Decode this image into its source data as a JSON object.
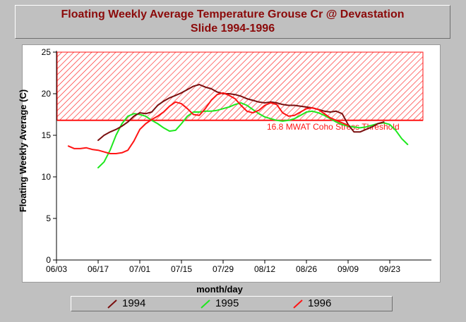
{
  "title": {
    "line1": "Floating Weekly Average Temperature Grouse Cr @ Devastation",
    "line2": "Slide 1994-1996"
  },
  "colors": {
    "s1994": "#7a0f0f",
    "s1995": "#1ee81e",
    "s1996": "#ff1414",
    "threshold": "#ff1414",
    "title_text": "#8b0a0a"
  },
  "chart_data": {
    "type": "line",
    "xlabel": "month/day",
    "ylabel": "Floating Weekly Average (C)",
    "ylim": [
      0,
      25
    ],
    "y_ticks": [
      0,
      5,
      10,
      15,
      20,
      25
    ],
    "x_ticks": [
      "06/03",
      "06/17",
      "07/01",
      "07/15",
      "07/29",
      "08/12",
      "08/26",
      "09/09",
      "09/23"
    ],
    "x_tick_days": [
      0,
      14,
      28,
      42,
      56,
      70,
      84,
      98,
      112
    ],
    "x_range_days": [
      0,
      126
    ],
    "grid": false,
    "legend_placement": "bottom",
    "threshold": {
      "value": 16.8,
      "label": "16.8 MWAT Coho Stress Threshold",
      "shaded_range": [
        16.8,
        25
      ]
    },
    "series": [
      {
        "name": "1994",
        "x": [
          14,
          16,
          18,
          20,
          22,
          24,
          26,
          28,
          30,
          32,
          34,
          36,
          38,
          40,
          42,
          44,
          46,
          48,
          50,
          52,
          54,
          56,
          58,
          60,
          62,
          64,
          66,
          68,
          70,
          72,
          74,
          76,
          78,
          80,
          82,
          84,
          86,
          88,
          90,
          92,
          94,
          96,
          98,
          100,
          102,
          104,
          106,
          108,
          110
        ],
        "y": [
          14.4,
          15.0,
          15.4,
          15.7,
          16.1,
          16.6,
          17.3,
          17.7,
          17.6,
          17.8,
          18.6,
          19.1,
          19.5,
          19.8,
          20.1,
          20.5,
          20.9,
          21.1,
          20.8,
          20.6,
          20.2,
          20.0,
          20.0,
          19.9,
          19.7,
          19.4,
          19.2,
          19.0,
          18.9,
          19.0,
          18.9,
          18.7,
          18.6,
          18.6,
          18.5,
          18.4,
          18.3,
          18.1,
          17.9,
          17.8,
          17.9,
          17.6,
          16.3,
          15.4,
          15.4,
          15.7,
          16.0,
          16.4,
          16.6
        ]
      },
      {
        "name": "1995",
        "x": [
          14,
          16,
          18,
          20,
          22,
          24,
          26,
          28,
          30,
          32,
          34,
          36,
          38,
          40,
          42,
          44,
          46,
          48,
          50,
          52,
          54,
          56,
          58,
          60,
          62,
          64,
          66,
          68,
          70,
          72,
          74,
          76,
          78,
          80,
          82,
          84,
          86,
          88,
          90,
          92,
          94,
          96,
          98,
          100,
          102,
          104,
          106,
          108,
          110,
          112,
          114,
          116,
          118
        ],
        "y": [
          11.1,
          11.8,
          13.2,
          15.0,
          16.4,
          17.3,
          17.6,
          17.5,
          17.3,
          16.8,
          16.4,
          15.9,
          15.5,
          15.6,
          16.4,
          17.3,
          17.8,
          17.8,
          17.9,
          17.9,
          18.0,
          18.2,
          18.4,
          18.7,
          18.9,
          18.6,
          18.1,
          17.6,
          17.2,
          17.0,
          16.8,
          16.7,
          16.8,
          17.0,
          17.4,
          17.8,
          17.9,
          17.7,
          17.4,
          17.0,
          16.6,
          16.3,
          16.1,
          16.0,
          15.9,
          16.0,
          16.2,
          16.4,
          16.5,
          16.3,
          15.6,
          14.6,
          13.9
        ]
      },
      {
        "name": "1996",
        "x": [
          4,
          6,
          8,
          10,
          12,
          14,
          16,
          18,
          20,
          22,
          24,
          26,
          28,
          30,
          32,
          34,
          36,
          38,
          40,
          42,
          44,
          46,
          48,
          50,
          52,
          54,
          56,
          58,
          60,
          62,
          64,
          66,
          68,
          70,
          72,
          74,
          76,
          78,
          80,
          82,
          84,
          86,
          88,
          90,
          92,
          94,
          96,
          98
        ],
        "y": [
          13.7,
          13.4,
          13.4,
          13.5,
          13.3,
          13.2,
          13.0,
          12.8,
          12.8,
          12.9,
          13.2,
          14.3,
          15.7,
          16.4,
          16.9,
          17.3,
          17.8,
          18.5,
          19.0,
          18.8,
          18.2,
          17.5,
          17.4,
          18.2,
          19.2,
          19.9,
          20.1,
          19.8,
          19.4,
          18.6,
          17.9,
          17.7,
          18.0,
          18.6,
          18.9,
          18.7,
          17.7,
          17.3,
          17.4,
          17.8,
          18.2,
          18.3,
          18.1,
          17.6,
          17.1,
          16.8,
          16.5,
          16.2
        ]
      }
    ]
  }
}
